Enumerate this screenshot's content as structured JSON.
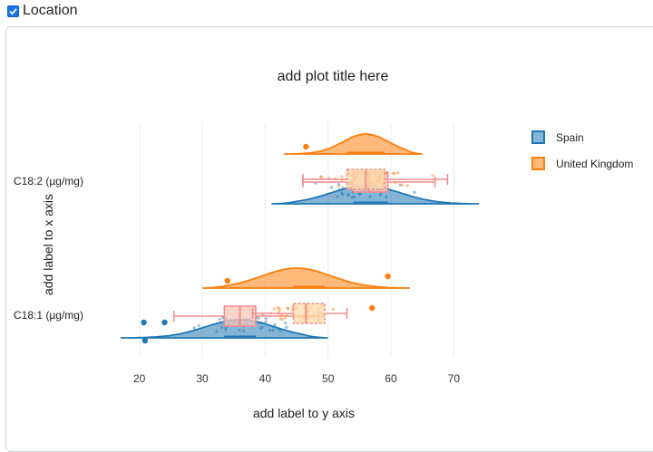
{
  "header": {
    "label": "Location",
    "checked": true
  },
  "chart_data": {
    "type": "raincloud",
    "orientation": "horizontal",
    "title": "add plot title here",
    "xlabel": "add label to y axis",
    "ylabel": "add label to x axis",
    "xlim": [
      15,
      76
    ],
    "x_ticks": [
      20,
      30,
      40,
      50,
      60,
      70
    ],
    "categories": [
      "C18:2 (µg/mg)",
      "C18:1 (µg/mg)"
    ],
    "grid": true,
    "legend": {
      "position": "top-right"
    },
    "series": [
      {
        "name": "Spain",
        "color": "#1f77b4",
        "groups": [
          {
            "category": "C18:2 (µg/mg)",
            "box": {
              "q1": 54,
              "median": 56.5,
              "q3": 59.5,
              "min": 46,
              "max": 67
            },
            "density_range": [
              41,
              74
            ],
            "peak": 56,
            "outliers": []
          },
          {
            "category": "C18:1 (µg/mg)",
            "box": {
              "q1": 33.5,
              "median": 36,
              "q3": 38.5,
              "min": 25.5,
              "max": 48.5
            },
            "density_range": [
              17,
              50
            ],
            "peak": 36,
            "outliers": [
              20.7,
              20.9,
              24
            ]
          }
        ]
      },
      {
        "name": "United Kingdom",
        "color": "#ff7f0e",
        "groups": [
          {
            "category": "C18:2 (µg/mg)",
            "box": {
              "q1": 53,
              "median": 56,
              "q3": 59,
              "min": 46,
              "max": 69
            },
            "density_range": [
              43,
              65
            ],
            "peak": 56,
            "outliers": [
              46.5
            ]
          },
          {
            "category": "C18:1 (µg/mg)",
            "box": {
              "q1": 44.5,
              "median": 46.5,
              "q3": 49.5,
              "min": 38,
              "max": 53
            },
            "density_range": [
              30,
              63
            ],
            "peak": 45,
            "outliers": [
              34,
              57,
              59.5
            ]
          }
        ]
      }
    ]
  }
}
